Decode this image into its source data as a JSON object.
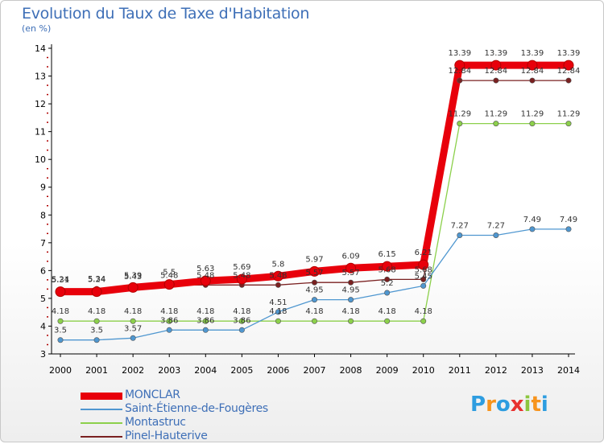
{
  "header": {
    "title": "Evolution du Taux de Taxe d'Habitation",
    "unit": "(en %)"
  },
  "logo": {
    "text": "Proxiti",
    "colors": [
      "#2e9de0",
      "#f7941d",
      "#2e9de0",
      "#e8312f",
      "#8cc63f",
      "#f7941d",
      "#2e9de0"
    ]
  },
  "chart_data": {
    "type": "line",
    "title": "Evolution du Taux de Taxe d'Habitation",
    "ylabel": "(en %)",
    "xlabel": "",
    "x": [
      "2000",
      "2001",
      "2002",
      "2003",
      "2004",
      "2005",
      "2006",
      "2007",
      "2008",
      "2009",
      "2010",
      "2011",
      "2012",
      "2013",
      "2014"
    ],
    "ylim": [
      3,
      14
    ],
    "yticks": [
      "3",
      "4",
      "5",
      "6",
      "7",
      "8",
      "9",
      "10",
      "11",
      "12",
      "13",
      "14"
    ],
    "grid": false,
    "legend_position": "bottom-left",
    "series": [
      {
        "name": "MONCLAR",
        "color": "#e8000b",
        "values": [
          5.24,
          5.24,
          5.39,
          5.5,
          5.63,
          5.69,
          5.8,
          5.97,
          6.09,
          6.15,
          6.21,
          13.39,
          13.39,
          13.39,
          13.39
        ],
        "labels": [
          "5.24",
          "5.24",
          "5.39",
          "5.5",
          "5.63",
          "5.69",
          "5.8",
          "5.97",
          "6.09",
          "6.15",
          "6.21",
          "13.39",
          "13.39",
          "13.39",
          "13.39"
        ]
      },
      {
        "name": "Saint-Étienne-de-Fougères",
        "color": "#4f97d0",
        "values": [
          3.5,
          3.5,
          3.57,
          3.86,
          3.86,
          3.86,
          4.51,
          4.95,
          4.95,
          5.2,
          5.45,
          7.27,
          7.27,
          7.49,
          7.49
        ],
        "labels": [
          "3.5",
          "3.5",
          "3.57",
          "3.86",
          "3.86",
          "3.86",
          "4.51",
          "4.95",
          "4.95",
          "5.2",
          "5.45",
          "7.27",
          "7.27",
          "7.49",
          "7.49"
        ]
      },
      {
        "name": "Montastruc",
        "color": "#8cd04b",
        "values": [
          4.18,
          4.18,
          4.18,
          4.18,
          4.18,
          4.18,
          4.18,
          4.18,
          4.18,
          4.18,
          4.18,
          11.29,
          11.29,
          11.29,
          11.29
        ],
        "labels": [
          "4.18",
          "4.18",
          "4.18",
          "4.18",
          "4.18",
          "4.18",
          "4.18",
          "4.18",
          "4.18",
          "4.18",
          "4.18",
          "11.29",
          "11.29",
          "11.29",
          "11.29"
        ]
      },
      {
        "name": "Pinel-Hauterive",
        "color": "#7a2020",
        "values": [
          5.31,
          5.34,
          5.43,
          5.48,
          5.48,
          5.48,
          5.48,
          5.57,
          5.57,
          5.68,
          5.68,
          12.84,
          12.84,
          12.84,
          12.84
        ],
        "labels": [
          "5.31",
          "5.34",
          "5.43",
          "5.48",
          "5.48",
          "5.48",
          "5.48",
          "5.57",
          "5.57",
          "5.68",
          "5.68",
          "12.84",
          "12.84",
          "12.84",
          "12.84"
        ]
      }
    ]
  }
}
